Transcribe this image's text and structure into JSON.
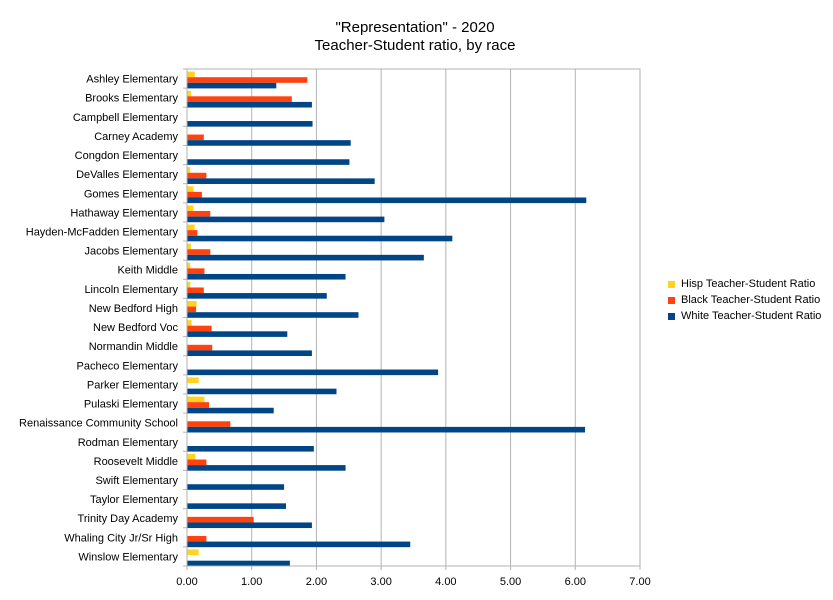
{
  "chart_data": {
    "type": "bar",
    "orientation": "horizontal",
    "title": "\"Representation\" - 2020",
    "subtitle": "Teacher-Student ratio, by race",
    "xlabel": "",
    "ylabel": "",
    "xlim": [
      0,
      7
    ],
    "xticks": [
      "0.00",
      "1.00",
      "2.00",
      "3.00",
      "4.00",
      "5.00",
      "6.00",
      "7.00"
    ],
    "grid": "vertical",
    "legend_position": "right",
    "categories": [
      "Ashley Elementary",
      "Brooks Elementary",
      "Campbell Elementary",
      "Carney Academy",
      "Congdon Elementary",
      "DeValles Elementary",
      "Gomes Elementary",
      "Hathaway Elementary",
      "Hayden-McFadden Elementary",
      "Jacobs Elementary",
      "Keith Middle",
      "Lincoln Elementary",
      "New Bedford High",
      "New Bedford Voc",
      "Normandin Middle",
      "Pacheco Elementary",
      "Parker Elementary",
      "Pulaski Elementary",
      "Renaissance Community School",
      "Rodman Elementary",
      "Roosevelt Middle",
      "Swift Elementary",
      "Taylor Elementary",
      "Trinity Day Academy",
      "Whaling City Jr/Sr High",
      "Winslow Elementary"
    ],
    "series": [
      {
        "name": "Hisp Teacher-Student Ratio",
        "color": "#ffd320",
        "values": [
          0.12,
          0.06,
          0.0,
          0.0,
          0.0,
          0.05,
          0.1,
          0.1,
          0.12,
          0.06,
          0.05,
          0.05,
          0.15,
          0.07,
          0.0,
          0.0,
          0.18,
          0.27,
          0.0,
          0.0,
          0.13,
          0.0,
          0.0,
          0.0,
          0.0,
          0.18
        ]
      },
      {
        "name": "Black Teacher-Student Ratio",
        "color": "#ff420e",
        "values": [
          1.86,
          1.62,
          0.0,
          0.26,
          0.0,
          0.3,
          0.23,
          0.36,
          0.16,
          0.36,
          0.27,
          0.26,
          0.14,
          0.38,
          0.39,
          0.0,
          0.0,
          0.34,
          0.67,
          0.0,
          0.3,
          0.0,
          0.0,
          1.03,
          0.3,
          0.0
        ]
      },
      {
        "name": "White Teacher-Student Ratio",
        "color": "#004586",
        "values": [
          1.38,
          1.93,
          1.94,
          2.53,
          2.51,
          2.9,
          6.17,
          3.05,
          4.1,
          3.66,
          2.45,
          2.16,
          2.65,
          1.55,
          1.93,
          3.88,
          2.31,
          1.34,
          6.15,
          1.96,
          2.45,
          1.5,
          1.53,
          1.93,
          3.45,
          1.59
        ]
      }
    ]
  }
}
